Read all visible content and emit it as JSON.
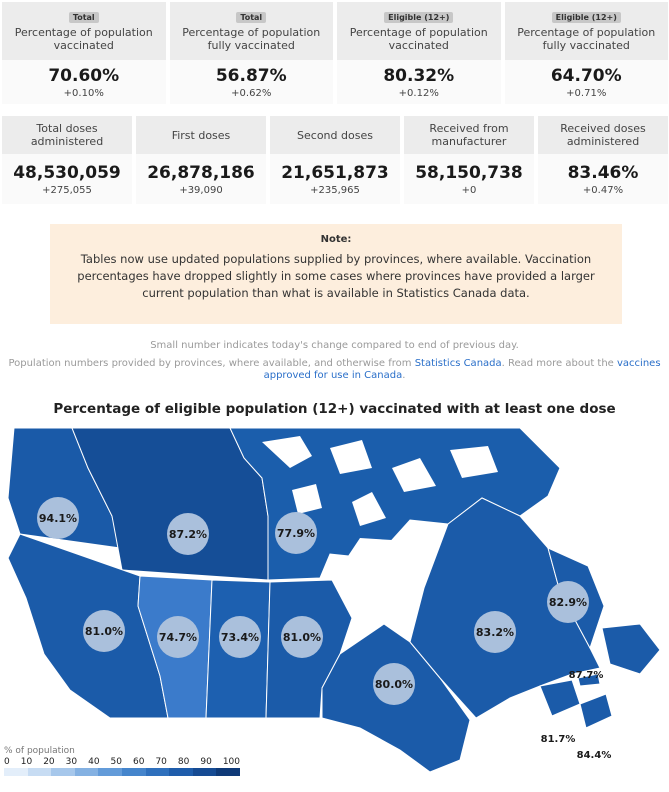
{
  "top_stats": [
    {
      "tag": "Total",
      "label_line1": "Percentage of population",
      "label_line2": "vaccinated",
      "value": "70.60%",
      "change": "+0.10%"
    },
    {
      "tag": "Total",
      "label_line1": "Percentage of population",
      "label_line2": "fully vaccinated",
      "value": "56.87%",
      "change": "+0.62%"
    },
    {
      "tag": "Eligible (12+)",
      "label_line1": "Percentage of population",
      "label_line2": "vaccinated",
      "value": "80.32%",
      "change": "+0.12%"
    },
    {
      "tag": "Eligible (12+)",
      "label_line1": "Percentage of population",
      "label_line2": "fully vaccinated",
      "value": "64.70%",
      "change": "+0.71%"
    }
  ],
  "dose_stats": [
    {
      "label_line1": "Total doses administered",
      "label_line2": "",
      "value": "48,530,059",
      "change": "+275,055"
    },
    {
      "label_line1": "First doses",
      "label_line2": "",
      "value": "26,878,186",
      "change": "+39,090"
    },
    {
      "label_line1": "Second doses",
      "label_line2": "",
      "value": "21,651,873",
      "change": "+235,965"
    },
    {
      "label_line1": "Received from",
      "label_line2": "manufacturer",
      "value": "58,150,738",
      "change": "+0"
    },
    {
      "label_line1": "Received doses",
      "label_line2": "administered",
      "value": "83.46%",
      "change": "+0.47%"
    }
  ],
  "note": {
    "title": "Note:",
    "text": "Tables now use updated populations supplied by provinces, where available. Vaccination percentages have dropped slightly in some cases where provinces have provided a larger current population than what is available in Statistics Canada data."
  },
  "small_note": "Small number indicates today's change compared to end of previous day.",
  "source_note": {
    "prefix": "Population numbers provided by provinces, where available, and otherwise from ",
    "link1": "Statistics Canada",
    "middle": ". Read more about the ",
    "link2": "vaccines approved for use in Canada",
    "suffix": "."
  },
  "map": {
    "title": "Percentage of eligible population (12+) vaccinated with at least one dose",
    "regions": [
      {
        "name": "Yukon",
        "value": "94.1%"
      },
      {
        "name": "Northwest Territories",
        "value": "87.2%"
      },
      {
        "name": "Nunavut",
        "value": "77.9%"
      },
      {
        "name": "British Columbia",
        "value": "81.0%"
      },
      {
        "name": "Alberta",
        "value": "74.7%"
      },
      {
        "name": "Saskatchewan",
        "value": "73.4%"
      },
      {
        "name": "Manitoba",
        "value": "81.0%"
      },
      {
        "name": "Ontario",
        "value": "80.0%"
      },
      {
        "name": "Quebec",
        "value": "83.2%"
      },
      {
        "name": "Newfoundland and Labrador",
        "value": "82.9%"
      },
      {
        "name": "Prince Edward Island",
        "value": "87.7%"
      },
      {
        "name": "New Brunswick",
        "value": "81.7%"
      },
      {
        "name": "Nova Scotia",
        "value": "84.4%"
      }
    ],
    "legend": {
      "title": "% of population",
      "ticks": [
        "0",
        "10",
        "20",
        "30",
        "40",
        "50",
        "60",
        "70",
        "80",
        "90",
        "100"
      ],
      "colors": [
        "#e3eefa",
        "#c7dcf3",
        "#a6c7eb",
        "#84b1e2",
        "#639bd9",
        "#4585cc",
        "#2f70bd",
        "#1f5dab",
        "#164b93",
        "#0f3a78"
      ]
    },
    "colors": {
      "water": "#ffffff",
      "territories": "#1a5aa8",
      "territories_dark": "#144c92",
      "provinces": "#1b5ba9",
      "alberta": "#3b7bcb",
      "circle": "#aac0dc"
    }
  }
}
